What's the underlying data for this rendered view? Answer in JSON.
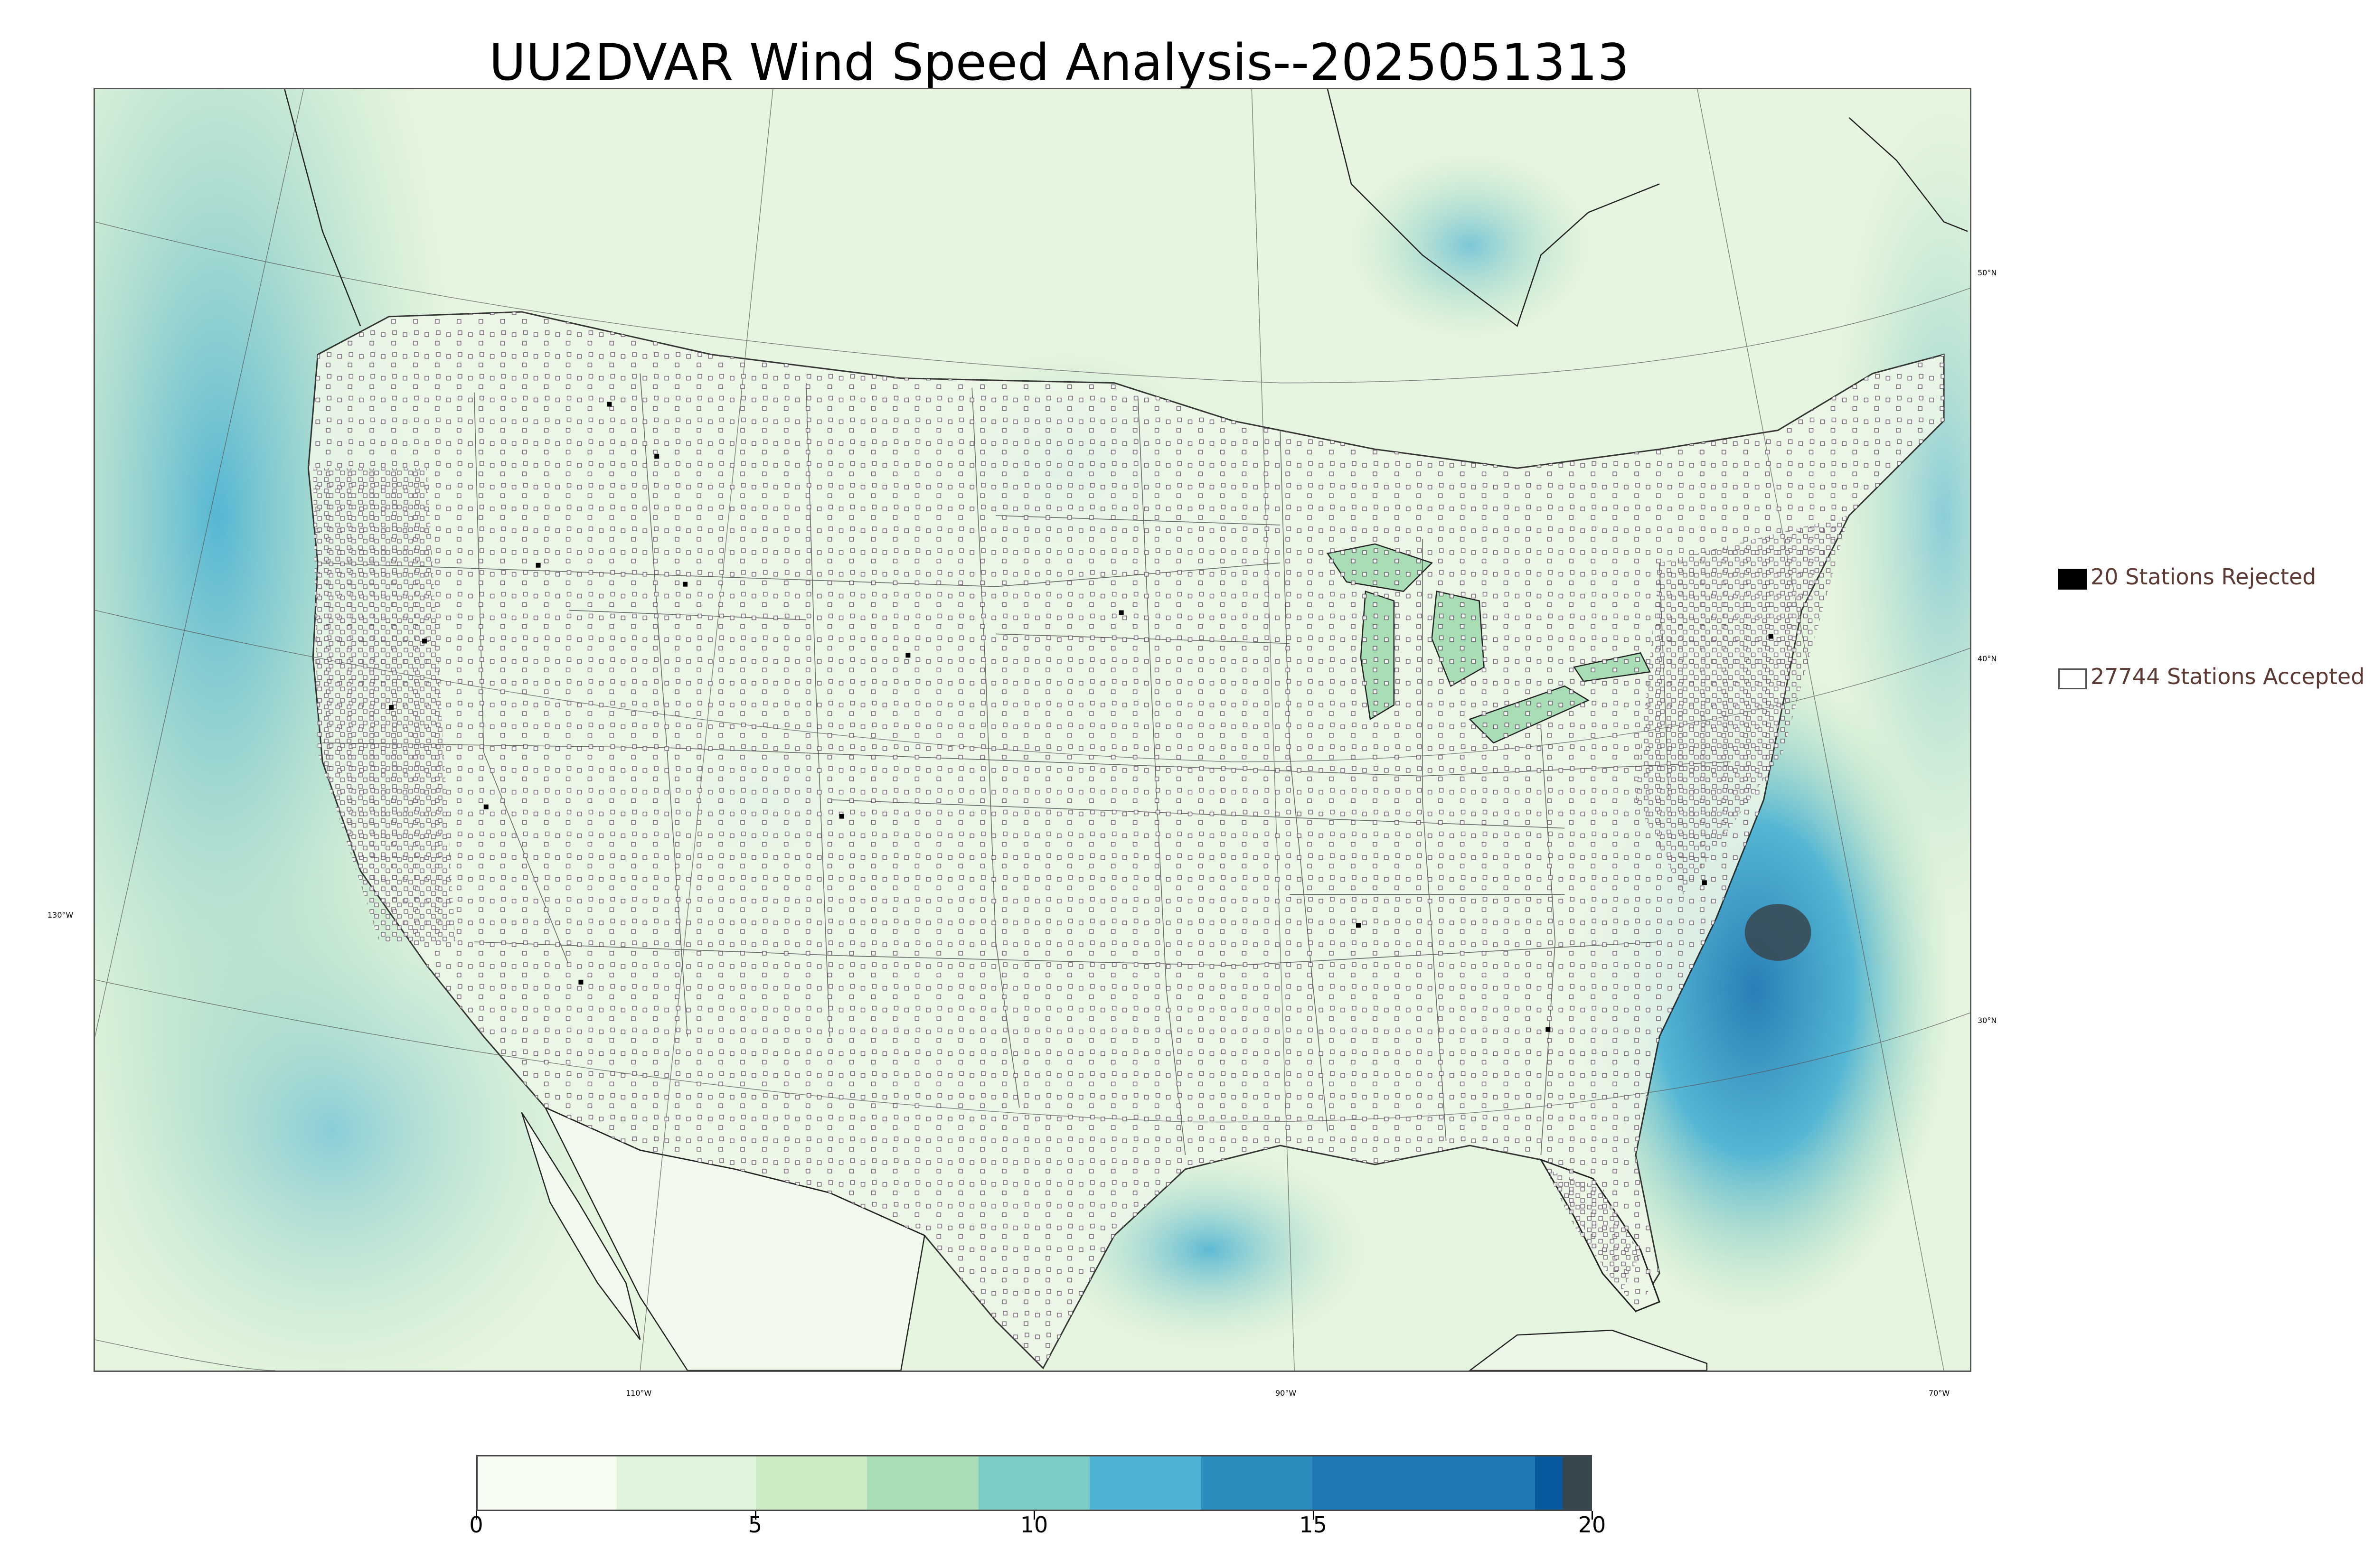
{
  "title": "UU2DVAR Wind Speed Analysis--2025051313",
  "legend": {
    "rejected": {
      "label": "20 Stations Rejected",
      "color": "#000000"
    },
    "accepted": {
      "label": "27744 Stations Accepted",
      "color": "#ffffff"
    }
  },
  "graticule": {
    "lat_labels": [
      "50°N",
      "40°N",
      "30°N"
    ],
    "lon_labels": [
      "130°W",
      "110°W",
      "90°W",
      "70°W"
    ]
  },
  "colorbar": {
    "min": 0,
    "max": 20,
    "ticks": [
      "0",
      "5",
      "10",
      "15",
      "20"
    ],
    "colors": [
      "#f7fcf0",
      "#e0f3db",
      "#ccebc5",
      "#a8ddb5",
      "#7bccc4",
      "#4eb3d3",
      "#2b8cbe",
      "#1f78b4",
      "#08589e",
      "#37474f"
    ],
    "stops": [
      0,
      2.5,
      5,
      7,
      9,
      11,
      13,
      15,
      19,
      19.5,
      20
    ]
  }
}
